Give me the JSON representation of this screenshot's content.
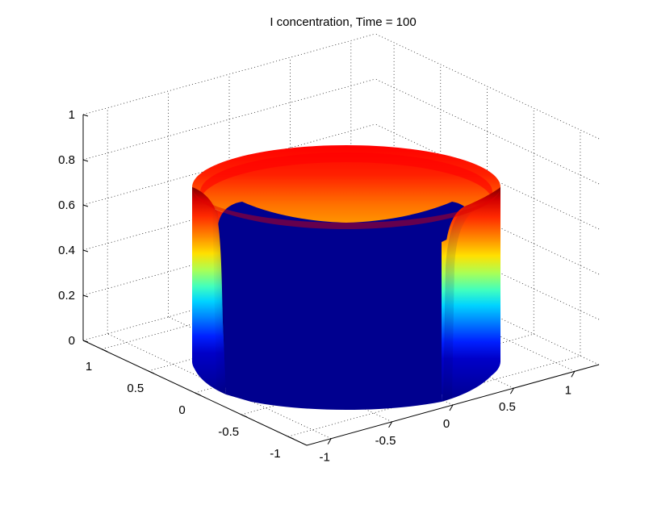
{
  "chart_data": {
    "type": "surface",
    "title": "I concentration, Time = 100",
    "xlabel": "",
    "ylabel": "",
    "zlabel": "",
    "colormap": "jet",
    "view": "3d-perspective",
    "grid": true,
    "xlim": [
      -1.2,
      1.2
    ],
    "ylim": [
      -1.2,
      1.2
    ],
    "zlim": [
      0,
      1
    ],
    "x_ticks": [
      "-1",
      "-0.5",
      "0",
      "0.5",
      "1"
    ],
    "y_ticks": [
      "-1",
      "-0.5",
      "0",
      "0.5",
      "1"
    ],
    "z_ticks": [
      "0",
      "0.2",
      "0.4",
      "0.6",
      "0.8",
      "1"
    ],
    "surface": {
      "shape": "cylindrical wall",
      "radius": 1,
      "height": 0.65,
      "value_range": [
        0,
        1
      ]
    }
  }
}
